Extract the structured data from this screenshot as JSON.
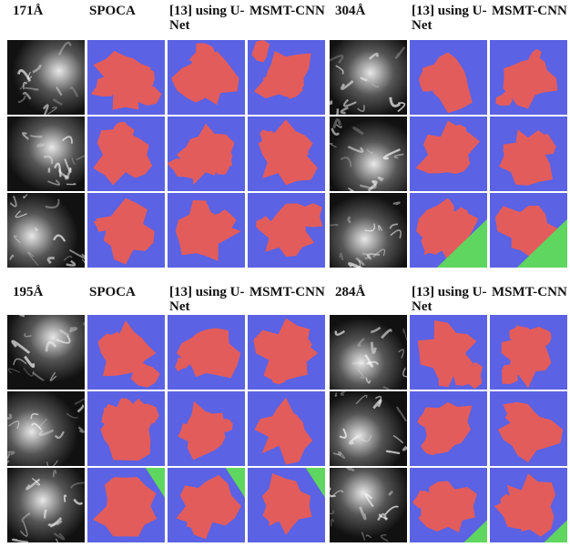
{
  "panels": [
    {
      "left_headers": [
        "171Å",
        "SPOCA",
        "[13] using U-Net",
        "MSMT-CNN"
      ],
      "right_headers": [
        "304Å",
        "[13] using U-Net",
        "MSMT-CNN"
      ]
    },
    {
      "left_headers": [
        "195Å",
        "SPOCA",
        "[13] using U-Net",
        "MSMT-CNN"
      ],
      "right_headers": [
        "284Å",
        "[13] using U-Net",
        "MSMT-CNN"
      ]
    }
  ]
}
